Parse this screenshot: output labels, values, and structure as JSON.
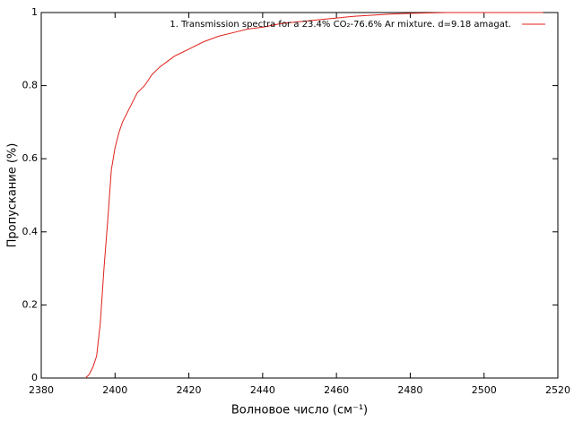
{
  "chart_data": {
    "type": "line",
    "x_label": "Волновое число (см⁻¹)",
    "y_label": "Пропускание (%)",
    "xlim": [
      2380,
      2520
    ],
    "ylim": [
      0,
      1
    ],
    "xticks": [
      2380,
      2400,
      2420,
      2440,
      2460,
      2480,
      2500,
      2520
    ],
    "yticks": [
      0,
      0.2,
      0.4,
      0.6,
      0.8,
      1
    ],
    "grid": false,
    "legend": "top-right",
    "x": [
      2392,
      2393,
      2394,
      2395,
      2396,
      2397,
      2398,
      2399,
      2400,
      2401,
      2402,
      2404,
      2406,
      2408,
      2410,
      2412,
      2414,
      2416,
      2418,
      2420,
      2424,
      2428,
      2432,
      2436,
      2440,
      2445,
      2450,
      2455,
      2460,
      2465,
      2470,
      2475,
      2480,
      2490,
      2500,
      2516
    ],
    "series": [
      {
        "name": "1. Transmission spectra for a  23.4% CO₂-76.6% Ar mixture. d=9.18 amagat.",
        "color": "#e0201a",
        "values": [
          0,
          0.01,
          0.03,
          0.06,
          0.15,
          0.3,
          0.43,
          0.57,
          0.63,
          0.67,
          0.7,
          0.74,
          0.78,
          0.8,
          0.83,
          0.85,
          0.865,
          0.88,
          0.89,
          0.9,
          0.92,
          0.935,
          0.945,
          0.955,
          0.96,
          0.97,
          0.975,
          0.98,
          0.985,
          0.99,
          0.993,
          0.996,
          0.998,
          1,
          1,
          1
        ]
      }
    ]
  }
}
